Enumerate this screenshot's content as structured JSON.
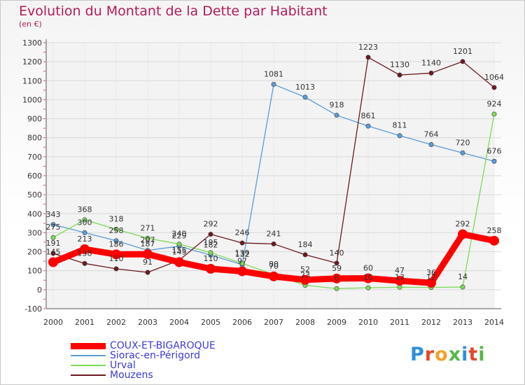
{
  "header": {
    "title": "Evolution du Montant de la Dette par Habitant",
    "unit": "(en €)"
  },
  "brand": {
    "text": "Proxiti",
    "colors": [
      "#2e8fd8",
      "#e8472a",
      "#f2a22a",
      "#54b948",
      "#2e8fd8",
      "#e8472a",
      "#54b948"
    ]
  },
  "chart_data": {
    "type": "line",
    "title": "Evolution du Montant de la Dette par Habitant",
    "subtitle": "(en €)",
    "xlabel": "",
    "ylabel": "",
    "x": [
      "2000",
      "2001",
      "2002",
      "2003",
      "2004",
      "2005",
      "2006",
      "2007",
      "2008",
      "2009",
      "2010",
      "2011",
      "2012",
      "2013",
      "2014"
    ],
    "ylim": [
      -100,
      1300
    ],
    "yticks": [
      -100,
      0,
      100,
      200,
      300,
      400,
      500,
      600,
      700,
      800,
      900,
      1000,
      1100,
      1200,
      1300
    ],
    "grid": true,
    "legend_position": "bottom-left",
    "series": [
      {
        "name": "COUX-ET-BIGAROQUE",
        "color": "#ff0000",
        "values": [
          145,
          213,
          186,
          187,
          145,
          110,
          97,
          70,
          52,
          59,
          60,
          47,
          36,
          292,
          258
        ]
      },
      {
        "name": "Siorac-en-Périgord",
        "color": "#5b9bd5",
        "values": [
          343,
          300,
          258,
          207,
          229,
          182,
          132,
          1081,
          1013,
          918,
          861,
          811,
          764,
          720,
          676
        ]
      },
      {
        "name": "Urval",
        "color": "#7ed957",
        "values": [
          275,
          368,
          318,
          271,
          240,
          195,
          139,
          80,
          23,
          6,
          10,
          13,
          12,
          14,
          924
        ]
      },
      {
        "name": "Mouzens",
        "color": "#6b1a1f",
        "values": [
          191,
          138,
          110,
          91,
          155,
          292,
          246,
          241,
          184,
          140,
          1223,
          1130,
          1140,
          1201,
          1064
        ]
      }
    ]
  }
}
